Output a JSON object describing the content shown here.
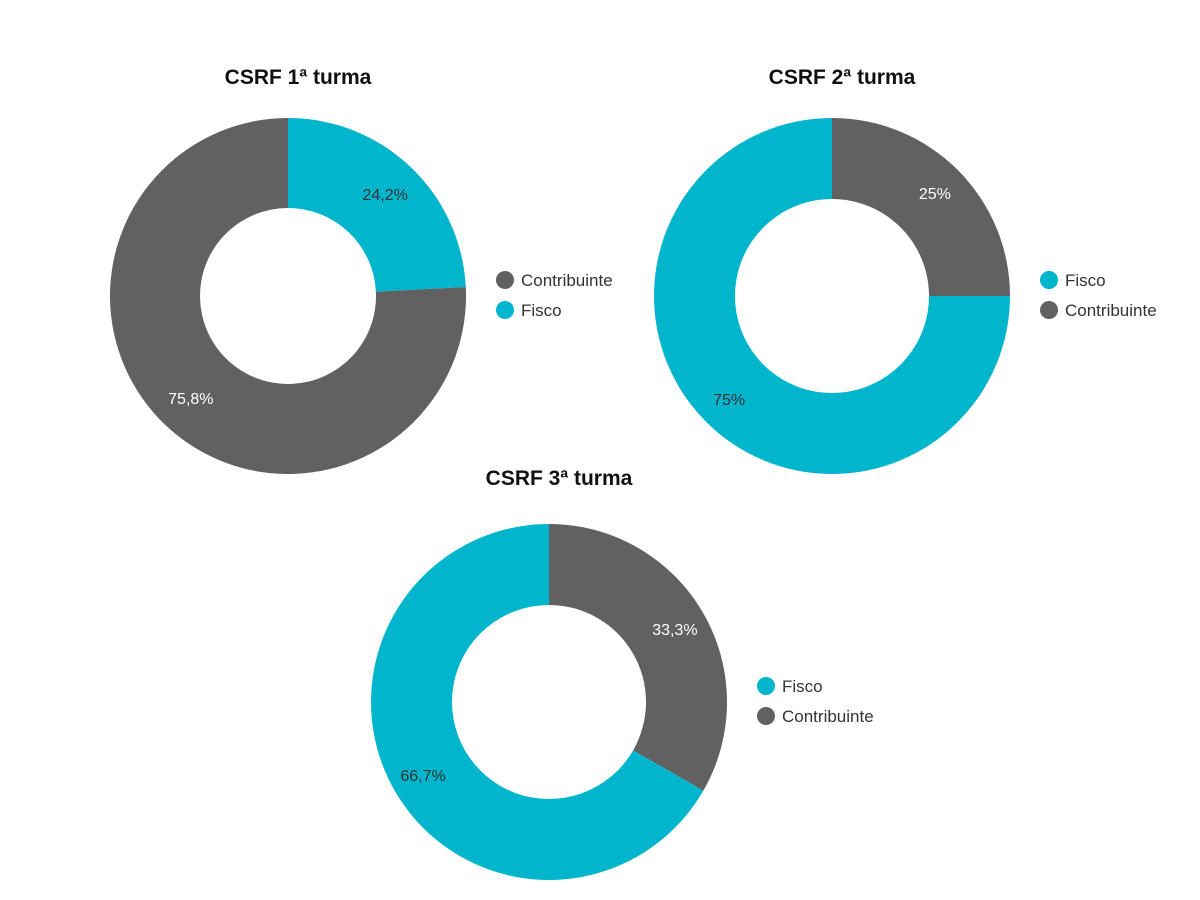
{
  "chart_data": [
    {
      "type": "pie",
      "title": "CSRF 1ª turma",
      "series": [
        {
          "name": "Contribuinte",
          "value": 75.8,
          "label": "75,8%",
          "color": "#616161"
        },
        {
          "name": "Fisco",
          "value": 24.2,
          "label": "24,2%",
          "color": "#00b5cc"
        }
      ]
    },
    {
      "type": "pie",
      "title": "CSRF 2ª turma",
      "series": [
        {
          "name": "Fisco",
          "value": 75,
          "label": "75%",
          "color": "#00b5cc"
        },
        {
          "name": "Contribuinte",
          "value": 25,
          "label": "25%",
          "color": "#616161"
        }
      ]
    },
    {
      "type": "pie",
      "title": "CSRF 3ª turma",
      "series": [
        {
          "name": "Fisco",
          "value": 66.7,
          "label": "66,7%",
          "color": "#00b5cc"
        },
        {
          "name": "Contribuinte",
          "value": 33.3,
          "label": "33,3%",
          "color": "#616161"
        }
      ]
    }
  ]
}
